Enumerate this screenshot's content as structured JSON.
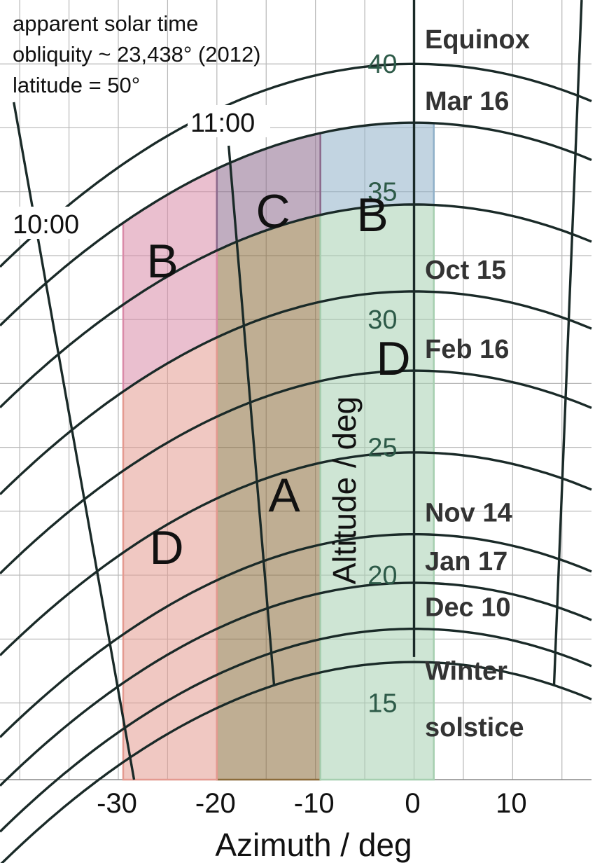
{
  "info": {
    "line1": "apparent solar time",
    "line2": "obliquity ~ 23,438° (2012)",
    "line3": "latitude = 50°"
  },
  "chart_data": {
    "type": "line",
    "title": "",
    "xlabel": "Azimuth / deg",
    "ylabel": "Altitude / deg",
    "xlim": [
      -42,
      18
    ],
    "ylim": [
      12,
      42.5
    ],
    "grid": true,
    "x_ticks": [
      -30,
      -20,
      -10,
      0,
      10
    ],
    "y_ticks": [
      15,
      20,
      25,
      30,
      35,
      40
    ],
    "date_curves": [
      {
        "label": "Equinox",
        "noon_alt": 40.0
      },
      {
        "label": "Mar 16",
        "noon_alt": 37.7
      },
      {
        "label": "",
        "noon_alt": 34.5
      },
      {
        "label": "Oct 15",
        "noon_alt": 31.1
      },
      {
        "label": "Feb 16",
        "noon_alt": 28.0
      },
      {
        "label": "",
        "noon_alt": 24.8
      },
      {
        "label": "Nov 14",
        "noon_alt": 21.6
      },
      {
        "label": "Jan 17",
        "noon_alt": 19.7
      },
      {
        "label": "Dec 10",
        "noon_alt": 17.9
      },
      {
        "label": "Winter solstice",
        "noon_alt": 16.6
      }
    ],
    "hour_lines": [
      {
        "label": "10:00",
        "points": [
          [
            -40.6,
            38.5
          ],
          [
            -28.4,
            12
          ]
        ]
      },
      {
        "label": "11:00",
        "points": [
          [
            -18.8,
            36.8
          ],
          [
            -14.2,
            15.7
          ]
        ]
      },
      {
        "label": "",
        "points": [
          [
            0,
            42.5
          ],
          [
            0,
            16.8
          ]
        ]
      },
      {
        "label": "",
        "points": [
          [
            17.0,
            42.5
          ],
          [
            14.2,
            15.7
          ]
        ]
      }
    ],
    "regions": [
      {
        "label": "A",
        "color": "#8b6b3a",
        "x_from": -20,
        "x_to": -9.5,
        "alt_top": 34.5,
        "alt_bottom": 12
      },
      {
        "label": "B",
        "color": "#d98aa8",
        "x_from": -29.5,
        "x_to": -20,
        "alt_top": 37.7,
        "alt_bottom": 31.1
      },
      {
        "label": "B",
        "color": "#8fb0c8",
        "x_from": -9.5,
        "x_to": 2,
        "alt_top": 37.7,
        "alt_bottom": 34.5
      },
      {
        "label": "C",
        "color": "#8c6a8c",
        "x_from": -20,
        "x_to": -9.5,
        "alt_top": 37.7,
        "alt_bottom": 34.5
      },
      {
        "label": "D",
        "color": "#e49a90",
        "x_from": -29.5,
        "x_to": -20,
        "alt_top": 31.1,
        "alt_bottom": 12
      },
      {
        "label": "D",
        "color": "#a6cfb0",
        "x_from": -9.5,
        "x_to": 2,
        "alt_top": 34.5,
        "alt_bottom": 12
      }
    ]
  }
}
